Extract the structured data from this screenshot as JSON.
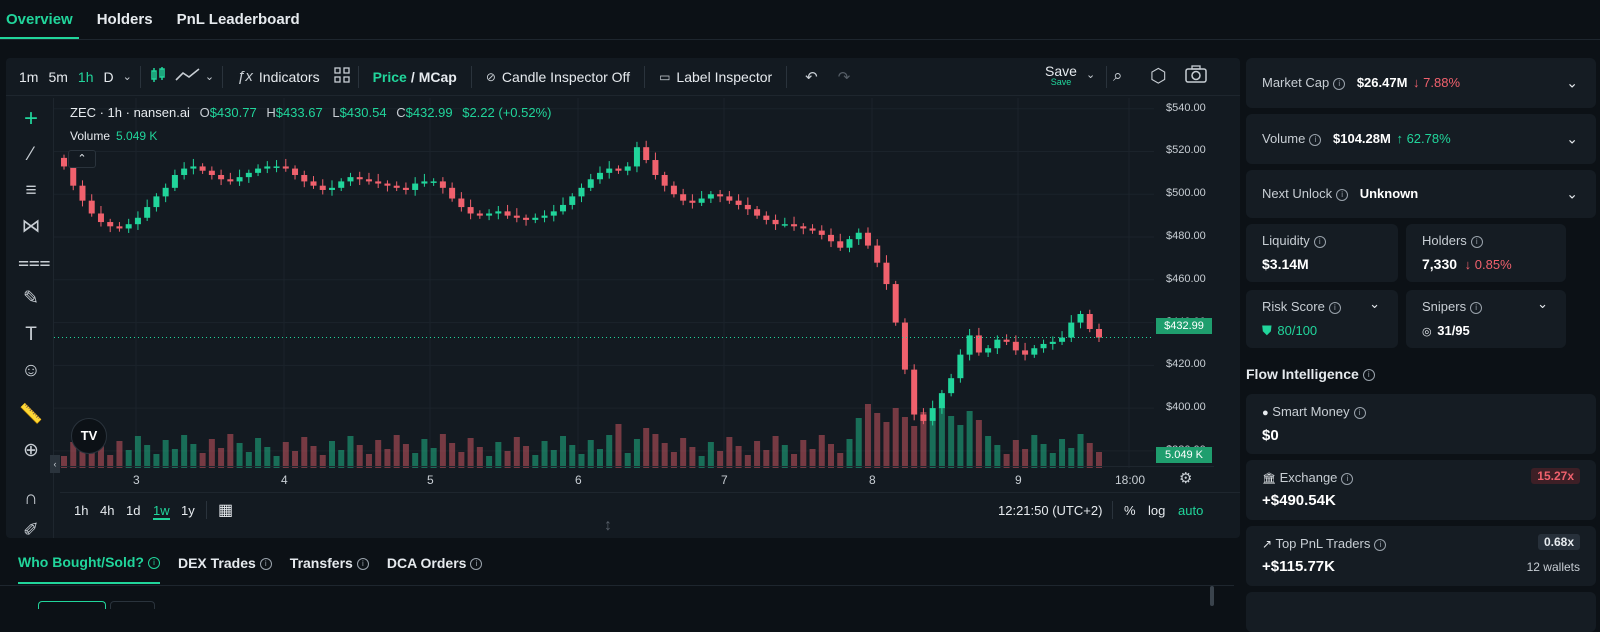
{
  "top_tabs": [
    {
      "label": "Overview",
      "active": true
    },
    {
      "label": "Holders",
      "active": false
    },
    {
      "label": "PnL Leaderboard",
      "active": false
    }
  ],
  "toolbar": {
    "timeframes": [
      "1m",
      "5m",
      "1h",
      "D"
    ],
    "active_timeframe": "1h",
    "indicators_label": "Indicators",
    "price_label": "Price",
    "slash": "/",
    "mcap_label": "MCap",
    "candle_inspector_label": "Candle Inspector Off",
    "label_inspector_label": "Label Inspector",
    "save_label": "Save",
    "save_sub": "Save"
  },
  "legend": {
    "symbol": "ZEC · 1h · nansen.ai",
    "o_label": "O",
    "o": "$430.77",
    "h_label": "H",
    "h": "$433.67",
    "l_label": "L",
    "l": "$430.54",
    "c_label": "C",
    "c": "$432.99",
    "change": "$2.22 (+0.52%)",
    "volume_label": "Volume",
    "volume": "5.049 K"
  },
  "price_tag": "$432.99",
  "volume_tag": "5.049 K",
  "bottom_bar": {
    "ranges": [
      "1h",
      "4h",
      "1d",
      "1w",
      "1y"
    ],
    "active_range": "1w",
    "time": "12:21:50 (UTC+2)",
    "pct": "%",
    "log": "log",
    "auto": "auto"
  },
  "lower_tabs": [
    "Who Bought/Sold?",
    "DEX Trades",
    "Transfers",
    "DCA Orders"
  ],
  "colors": {
    "up": "#21d59b",
    "down": "#f0616d",
    "accent": "#21d59b"
  },
  "chart_data": {
    "type": "candlestick",
    "y_ticks": [
      "$540.00",
      "$520.00",
      "$500.00",
      "$480.00",
      "$460.00",
      "$440.00",
      "$420.00",
      "$400.00",
      "$380.00"
    ],
    "ylim": [
      372,
      545
    ],
    "x_ticks": [
      "3",
      "4",
      "5",
      "6",
      "7",
      "8",
      "9",
      "18:00"
    ],
    "close_series": [
      513,
      504,
      497,
      491,
      487,
      485,
      484,
      486,
      489,
      494,
      499,
      503,
      509,
      512,
      513,
      511,
      509,
      507,
      506,
      508,
      510,
      512,
      513,
      513,
      512,
      509,
      506,
      504,
      502,
      503,
      506,
      508,
      507,
      506,
      505,
      504,
      503,
      502,
      505,
      506,
      506,
      503,
      498,
      494,
      491,
      490,
      491,
      492,
      490,
      489,
      488,
      489,
      490,
      492,
      495,
      499,
      503,
      507,
      510,
      512,
      511,
      513,
      522,
      516,
      509,
      504,
      500,
      497,
      496,
      498,
      500,
      499,
      497,
      495,
      493,
      490,
      488,
      486,
      486,
      485,
      484,
      483,
      481,
      478,
      475,
      479,
      482,
      476,
      468,
      458,
      440,
      418,
      397,
      394,
      400,
      407,
      414,
      425,
      434,
      426,
      428,
      432,
      431,
      427,
      425,
      428,
      430,
      431,
      433,
      440,
      444,
      437,
      433
    ],
    "volume_note": "volume bars at bottom of pane"
  },
  "right_panel": {
    "market_cap": {
      "label": "Market Cap",
      "value": "$26.47M",
      "change": "↓ 7.88%"
    },
    "volume": {
      "label": "Volume",
      "value": "$104.28M",
      "change": "↑ 62.78%"
    },
    "next_unlock": {
      "label": "Next Unlock",
      "value": "Unknown"
    },
    "liquidity": {
      "label": "Liquidity",
      "value": "$3.14M"
    },
    "holders": {
      "label": "Holders",
      "value": "7,330",
      "change": "↓ 0.85%"
    },
    "risk_score": {
      "label": "Risk Score",
      "value": "80/100"
    },
    "snipers": {
      "label": "Snipers",
      "value": "31/95"
    },
    "flow_title": "Flow Intelligence",
    "smart_money": {
      "label": "Smart Money",
      "value": "$0"
    },
    "exchange": {
      "label": "Exchange",
      "value": "+$490.54K",
      "badge": "15.27x"
    },
    "top_pnl": {
      "label": "Top PnL Traders",
      "value": "+$115.77K",
      "badge": "0.68x",
      "sub": "12 wallets"
    }
  }
}
